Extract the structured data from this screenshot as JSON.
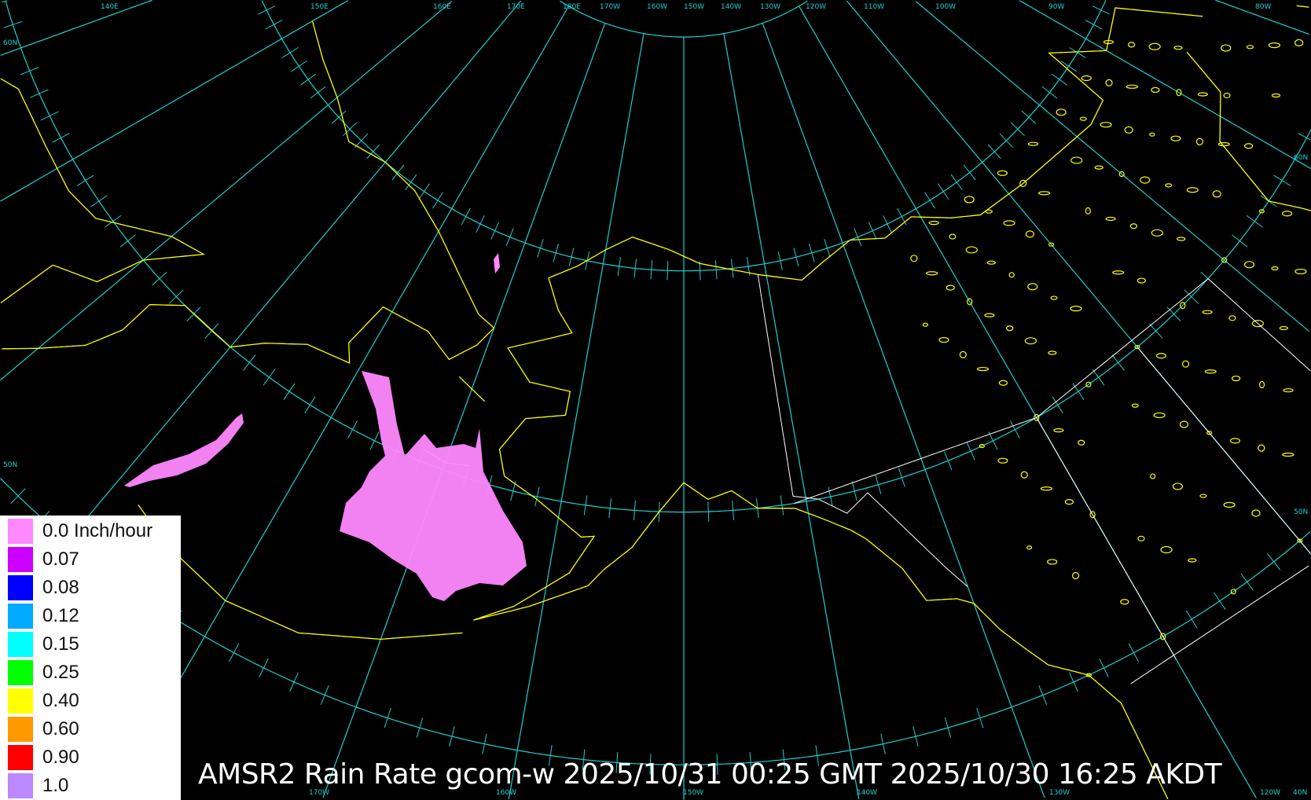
{
  "title": "AMSR2 Rain Rate gcom-w 2025/10/31 00:25 GMT 2025/10/30 16:25 AKDT",
  "colors": {
    "background": "#000000",
    "graticule": "#1fd0d0",
    "coastline": "#ffff00",
    "borders": "#ffffff"
  },
  "graticule_labels": {
    "top": [
      "140E",
      "150E",
      "160E",
      "170E",
      "180E",
      "170W",
      "160W",
      "150W",
      "140W",
      "130W",
      "120W",
      "110W",
      "100W",
      "90W",
      "80W"
    ],
    "bottom": [
      "170W",
      "160W",
      "150W",
      "140W",
      "130W",
      "120W",
      "40N"
    ],
    "left": [
      "60N",
      "50N"
    ],
    "right": [
      "60N",
      "50N"
    ]
  },
  "legend": {
    "items": [
      {
        "label": "0.0 Inch/hour",
        "color": "#ff88ff"
      },
      {
        "label": "0.07",
        "color": "#cc00ff"
      },
      {
        "label": "0.08",
        "color": "#0000ff"
      },
      {
        "label": "0.12",
        "color": "#00aaff"
      },
      {
        "label": "0.15",
        "color": "#00ffff"
      },
      {
        "label": "0.25",
        "color": "#00ff00"
      },
      {
        "label": "0.40",
        "color": "#ffff00"
      },
      {
        "label": "0.60",
        "color": "#ff9900"
      },
      {
        "label": "0.90",
        "color": "#ff0000"
      },
      {
        "label": "1.0",
        "color": "#bb88ff"
      }
    ]
  }
}
